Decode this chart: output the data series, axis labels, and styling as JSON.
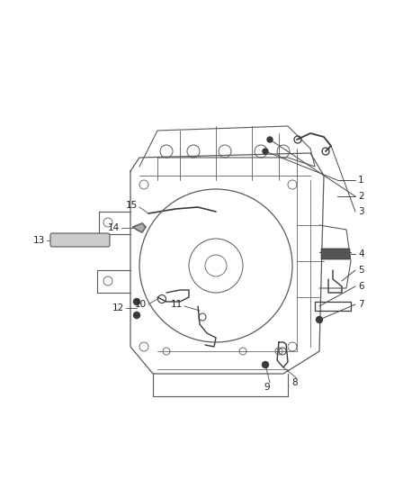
{
  "background_color": "#ffffff",
  "fig_width": 4.38,
  "fig_height": 5.33,
  "dpi": 100,
  "line_color": "#4a4a4a",
  "label_color": "#222222",
  "housing_color": "#5a5a5a",
  "part_color": "#3a3a3a",
  "housing_fill": "#f8f8f8",
  "inner_color": "#666666"
}
